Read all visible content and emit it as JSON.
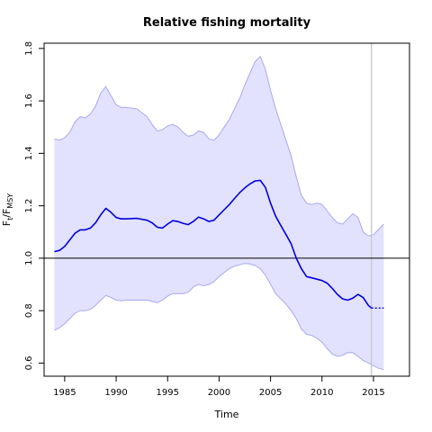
{
  "chart_data": {
    "type": "line",
    "title": "Relative fishing mortality",
    "xlabel": "Time",
    "ylabel": {
      "base": "F",
      "sub1": "t",
      "slash": "/F",
      "sub2": "MSY"
    },
    "xlim": [
      1983,
      2018.5
    ],
    "ylim": [
      0.55,
      1.82
    ],
    "xticks": [
      1985,
      1990,
      1995,
      2000,
      2005,
      2010,
      2015
    ],
    "yticks": [
      0.6,
      0.8,
      1.0,
      1.2,
      1.4,
      1.6,
      1.8
    ],
    "ytick_labels": [
      "0.6",
      "0.8",
      "1.0",
      "1.2",
      "1.4",
      "1.6",
      "1.8"
    ],
    "reference_line": 1.0,
    "vertical_marker": 2014.8,
    "estimate_end": 2014.8,
    "colors": {
      "line": "#0000e0",
      "band_fill": "#e2e2ff",
      "band_edge": "#a8a8ee",
      "marker": "#cccccc"
    },
    "series": [
      {
        "role": "estimate",
        "x": [
          1984,
          1984.5,
          1985,
          1985.5,
          1986,
          1986.5,
          1987,
          1987.5,
          1988,
          1988.5,
          1989,
          1989.5,
          1990,
          1990.5,
          1991,
          1992,
          1993,
          1993.5,
          1994,
          1994.5,
          1995,
          1995.5,
          1996,
          1996.5,
          1997,
          1997.5,
          1998,
          1998.5,
          1999,
          1999.5,
          2000,
          2000.5,
          2001,
          2001.5,
          2002,
          2002.5,
          2003,
          2003.5,
          2004,
          2004.5,
          2005,
          2005.5,
          2006,
          2006.5,
          2007,
          2007.5,
          2008,
          2008.5,
          2009,
          2009.5,
          2010,
          2010.5,
          2011,
          2011.5,
          2012,
          2012.5,
          2013,
          2013.5,
          2014,
          2014.5,
          2014.8
        ],
        "values": [
          1.025,
          1.03,
          1.045,
          1.07,
          1.095,
          1.108,
          1.108,
          1.115,
          1.135,
          1.165,
          1.19,
          1.175,
          1.155,
          1.15,
          1.15,
          1.152,
          1.145,
          1.135,
          1.118,
          1.115,
          1.13,
          1.143,
          1.14,
          1.133,
          1.128,
          1.14,
          1.157,
          1.15,
          1.14,
          1.145,
          1.165,
          1.185,
          1.205,
          1.228,
          1.25,
          1.268,
          1.283,
          1.295,
          1.297,
          1.27,
          1.21,
          1.16,
          1.125,
          1.09,
          1.055,
          1.0,
          0.96,
          0.93,
          0.925,
          0.92,
          0.915,
          0.905,
          0.885,
          0.862,
          0.845,
          0.84,
          0.848,
          0.862,
          0.85,
          0.82,
          0.81
        ]
      },
      {
        "role": "projection",
        "x": [
          2014.8,
          2015.5,
          2016
        ],
        "values": [
          0.81,
          0.81,
          0.81
        ]
      },
      {
        "role": "upper",
        "x": [
          1984,
          1984.5,
          1985,
          1985.5,
          1986,
          1986.5,
          1987,
          1987.5,
          1988,
          1988.5,
          1989,
          1989.5,
          1990,
          1990.5,
          1991,
          1992,
          1993,
          1993.5,
          1994,
          1994.5,
          1995,
          1995.5,
          1996,
          1996.5,
          1997,
          1997.5,
          1998,
          1998.5,
          1999,
          1999.5,
          2000,
          2000.5,
          2001,
          2001.5,
          2002,
          2002.5,
          2003,
          2003.5,
          2004,
          2004.5,
          2005,
          2005.5,
          2006,
          2006.5,
          2007,
          2007.5,
          2008,
          2008.5,
          2009,
          2009.5,
          2010,
          2010.5,
          2011,
          2011.5,
          2012,
          2012.5,
          2013,
          2013.5,
          2014,
          2014.5,
          2015,
          2015.5,
          2016
        ],
        "values": [
          1.455,
          1.45,
          1.46,
          1.48,
          1.52,
          1.54,
          1.535,
          1.55,
          1.58,
          1.63,
          1.655,
          1.62,
          1.585,
          1.575,
          1.575,
          1.57,
          1.54,
          1.51,
          1.485,
          1.49,
          1.505,
          1.51,
          1.5,
          1.48,
          1.465,
          1.47,
          1.485,
          1.48,
          1.455,
          1.45,
          1.47,
          1.5,
          1.53,
          1.57,
          1.61,
          1.66,
          1.705,
          1.75,
          1.77,
          1.72,
          1.64,
          1.57,
          1.51,
          1.45,
          1.39,
          1.31,
          1.24,
          1.21,
          1.205,
          1.21,
          1.205,
          1.18,
          1.155,
          1.135,
          1.13,
          1.15,
          1.17,
          1.155,
          1.1,
          1.085,
          1.09,
          1.11,
          1.13
        ]
      },
      {
        "role": "lower",
        "x": [
          1984,
          1984.5,
          1985,
          1985.5,
          1986,
          1986.5,
          1987,
          1987.5,
          1988,
          1988.5,
          1989,
          1989.5,
          1990,
          1990.5,
          1991,
          1992,
          1993,
          1993.5,
          1994,
          1994.5,
          1995,
          1995.5,
          1996,
          1996.5,
          1997,
          1997.5,
          1998,
          1998.5,
          1999,
          1999.5,
          2000,
          2000.5,
          2001,
          2001.5,
          2002,
          2002.5,
          2003,
          2003.5,
          2004,
          2004.5,
          2005,
          2005.5,
          2006,
          2006.5,
          2007,
          2007.5,
          2008,
          2008.5,
          2009,
          2009.5,
          2010,
          2010.5,
          2011,
          2011.5,
          2012,
          2012.5,
          2013,
          2013.5,
          2014,
          2014.5,
          2015,
          2015.5,
          2016
        ],
        "values": [
          0.725,
          0.735,
          0.75,
          0.77,
          0.79,
          0.8,
          0.8,
          0.805,
          0.82,
          0.84,
          0.858,
          0.85,
          0.84,
          0.838,
          0.84,
          0.84,
          0.84,
          0.835,
          0.83,
          0.84,
          0.855,
          0.865,
          0.865,
          0.865,
          0.87,
          0.89,
          0.9,
          0.895,
          0.9,
          0.91,
          0.93,
          0.945,
          0.96,
          0.97,
          0.975,
          0.98,
          0.978,
          0.972,
          0.96,
          0.935,
          0.9,
          0.865,
          0.845,
          0.825,
          0.8,
          0.77,
          0.73,
          0.71,
          0.705,
          0.695,
          0.68,
          0.655,
          0.635,
          0.625,
          0.63,
          0.64,
          0.64,
          0.625,
          0.61,
          0.6,
          0.59,
          0.58,
          0.575
        ]
      }
    ]
  }
}
